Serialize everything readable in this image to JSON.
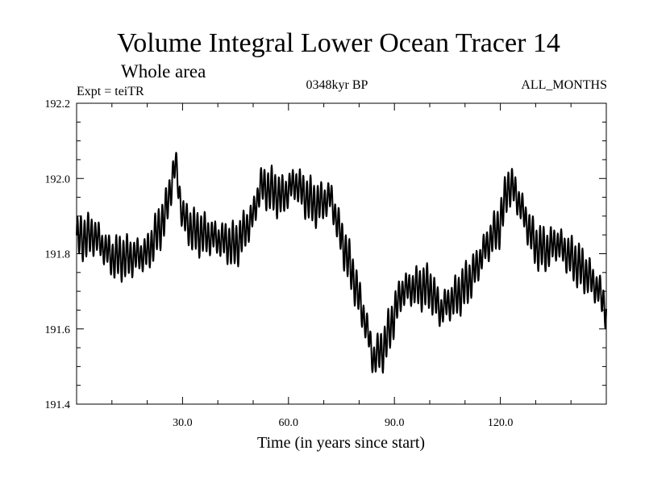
{
  "chart_data": {
    "type": "line",
    "title": "Volume Integral Lower Ocean Tracer 14",
    "subtitle": "Whole area",
    "annotations": {
      "left": "Expt = teiTR",
      "center": "0348kyr BP",
      "right": "ALL_MONTHS"
    },
    "xlabel": "Time (in years since start)",
    "ylabel": "",
    "xlim": [
      0,
      150
    ],
    "ylim": [
      191.4,
      192.2
    ],
    "x_ticks": [
      30,
      60,
      90,
      120
    ],
    "x_tick_labels": [
      "30.0",
      "60.0",
      "90.0",
      "120.0"
    ],
    "y_ticks": [
      191.4,
      191.6,
      191.8,
      192.0,
      192.2
    ],
    "y_tick_labels": [
      "191.4",
      "191.6",
      "191.8",
      "192.0",
      "192.2"
    ],
    "grid": false,
    "line_color": "#000000",
    "seasonal_amplitude": 0.045,
    "series": [
      {
        "name": "Lower Ocean Tracer 14",
        "x": [
          0,
          5,
          10,
          15,
          20,
          25,
          28,
          30,
          33,
          40,
          45,
          50,
          52,
          55,
          58,
          62,
          65,
          68,
          72,
          75,
          78,
          82,
          84,
          87,
          90,
          92,
          95,
          100,
          103,
          108,
          112,
          116,
          120,
          122,
          124,
          126,
          128,
          130,
          133,
          136,
          140,
          145,
          148,
          150
        ],
        "values": [
          191.84,
          191.85,
          191.79,
          191.79,
          191.8,
          191.9,
          192.04,
          191.9,
          191.86,
          191.84,
          191.82,
          191.9,
          191.98,
          191.97,
          191.95,
          191.99,
          191.95,
          191.93,
          191.95,
          191.84,
          191.75,
          191.61,
          191.52,
          191.55,
          191.64,
          191.7,
          191.71,
          191.71,
          191.65,
          191.69,
          191.74,
          191.82,
          191.88,
          191.98,
          191.97,
          191.92,
          191.87,
          191.82,
          191.81,
          191.83,
          191.79,
          191.74,
          191.7,
          191.65
        ]
      }
    ]
  }
}
